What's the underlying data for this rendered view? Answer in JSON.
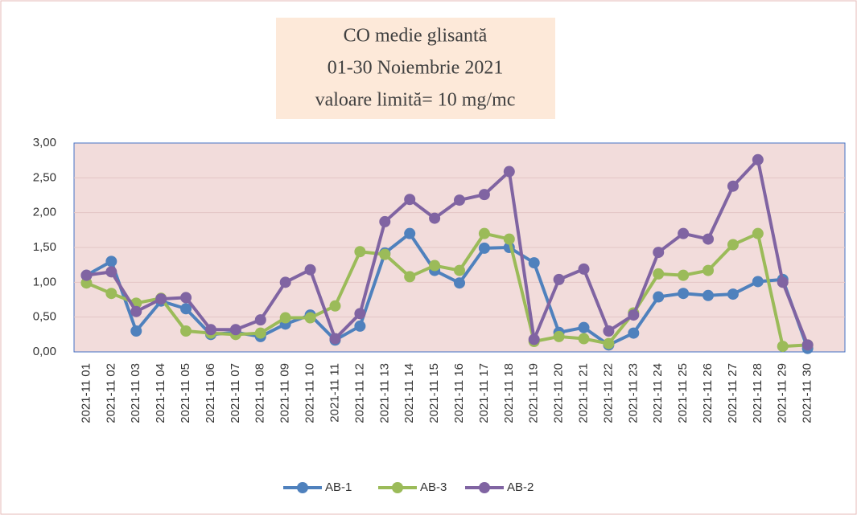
{
  "chart_data": {
    "type": "line",
    "title": "CO medie glisantă",
    "subtitle": "01-30 Noiembrie 2021",
    "annotation": "valoare limită= 10 mg/mc",
    "categories": [
      "2021-11 01",
      "2021-11 02",
      "2021-11 03",
      "2021-11 04",
      "2021-11 05",
      "2021-11 06",
      "2021-11 07",
      "2021-11 08",
      "2021-11 09",
      "2021-11 10",
      "2021-11 11",
      "2021-11 12",
      "2021-11 13",
      "2021-11 14",
      "2021-11 15",
      "2021-11 16",
      "2021-11 17",
      "2021-11 18",
      "2021-11 19",
      "2021-11 20",
      "2021-11 21",
      "2021-11 22",
      "2021-11 23",
      "2021-11 24",
      "2021-11 25",
      "2021-11 26",
      "2021-11 27",
      "2021-11 28",
      "2021-11 29",
      "2021-11 30"
    ],
    "series": [
      {
        "name": "AB-1",
        "color": "#4f81bd",
        "values": [
          1.1,
          1.3,
          0.3,
          0.73,
          0.62,
          0.25,
          0.28,
          0.22,
          0.4,
          0.53,
          0.17,
          0.37,
          1.42,
          1.7,
          1.17,
          0.99,
          1.49,
          1.5,
          1.28,
          0.28,
          0.35,
          0.1,
          0.27,
          0.79,
          0.84,
          0.81,
          0.83,
          1.01,
          1.04,
          0.05
        ]
      },
      {
        "name": "AB-3",
        "color": "#9bbb59",
        "values": [
          0.99,
          0.84,
          0.7,
          0.77,
          0.3,
          0.27,
          0.25,
          0.27,
          0.49,
          0.49,
          0.66,
          1.44,
          1.4,
          1.08,
          1.24,
          1.17,
          1.7,
          1.62,
          0.15,
          0.22,
          0.19,
          0.12,
          0.56,
          1.12,
          1.1,
          1.17,
          1.54,
          1.7,
          0.08,
          0.1
        ]
      },
      {
        "name": "AB-2",
        "color": "#8064a2",
        "values": [
          1.1,
          1.15,
          0.58,
          0.76,
          0.78,
          0.32,
          0.32,
          0.46,
          1.0,
          1.18,
          0.19,
          0.55,
          1.87,
          2.19,
          1.92,
          2.18,
          2.26,
          2.59,
          0.18,
          1.04,
          1.19,
          0.3,
          0.53,
          1.43,
          1.7,
          1.62,
          2.38,
          2.76,
          1.0,
          0.1
        ]
      }
    ],
    "ylim": [
      0,
      3
    ],
    "yticks": [
      {
        "value": 0,
        "label": "0,00"
      },
      {
        "value": 0.5,
        "label": "0,50"
      },
      {
        "value": 1,
        "label": "1,00"
      },
      {
        "value": 1.5,
        "label": "1,50"
      },
      {
        "value": 2,
        "label": "2,00"
      },
      {
        "value": 2.5,
        "label": "2,50"
      },
      {
        "value": 3,
        "label": "3,00"
      }
    ],
    "grid": true,
    "legend": "bottom"
  }
}
